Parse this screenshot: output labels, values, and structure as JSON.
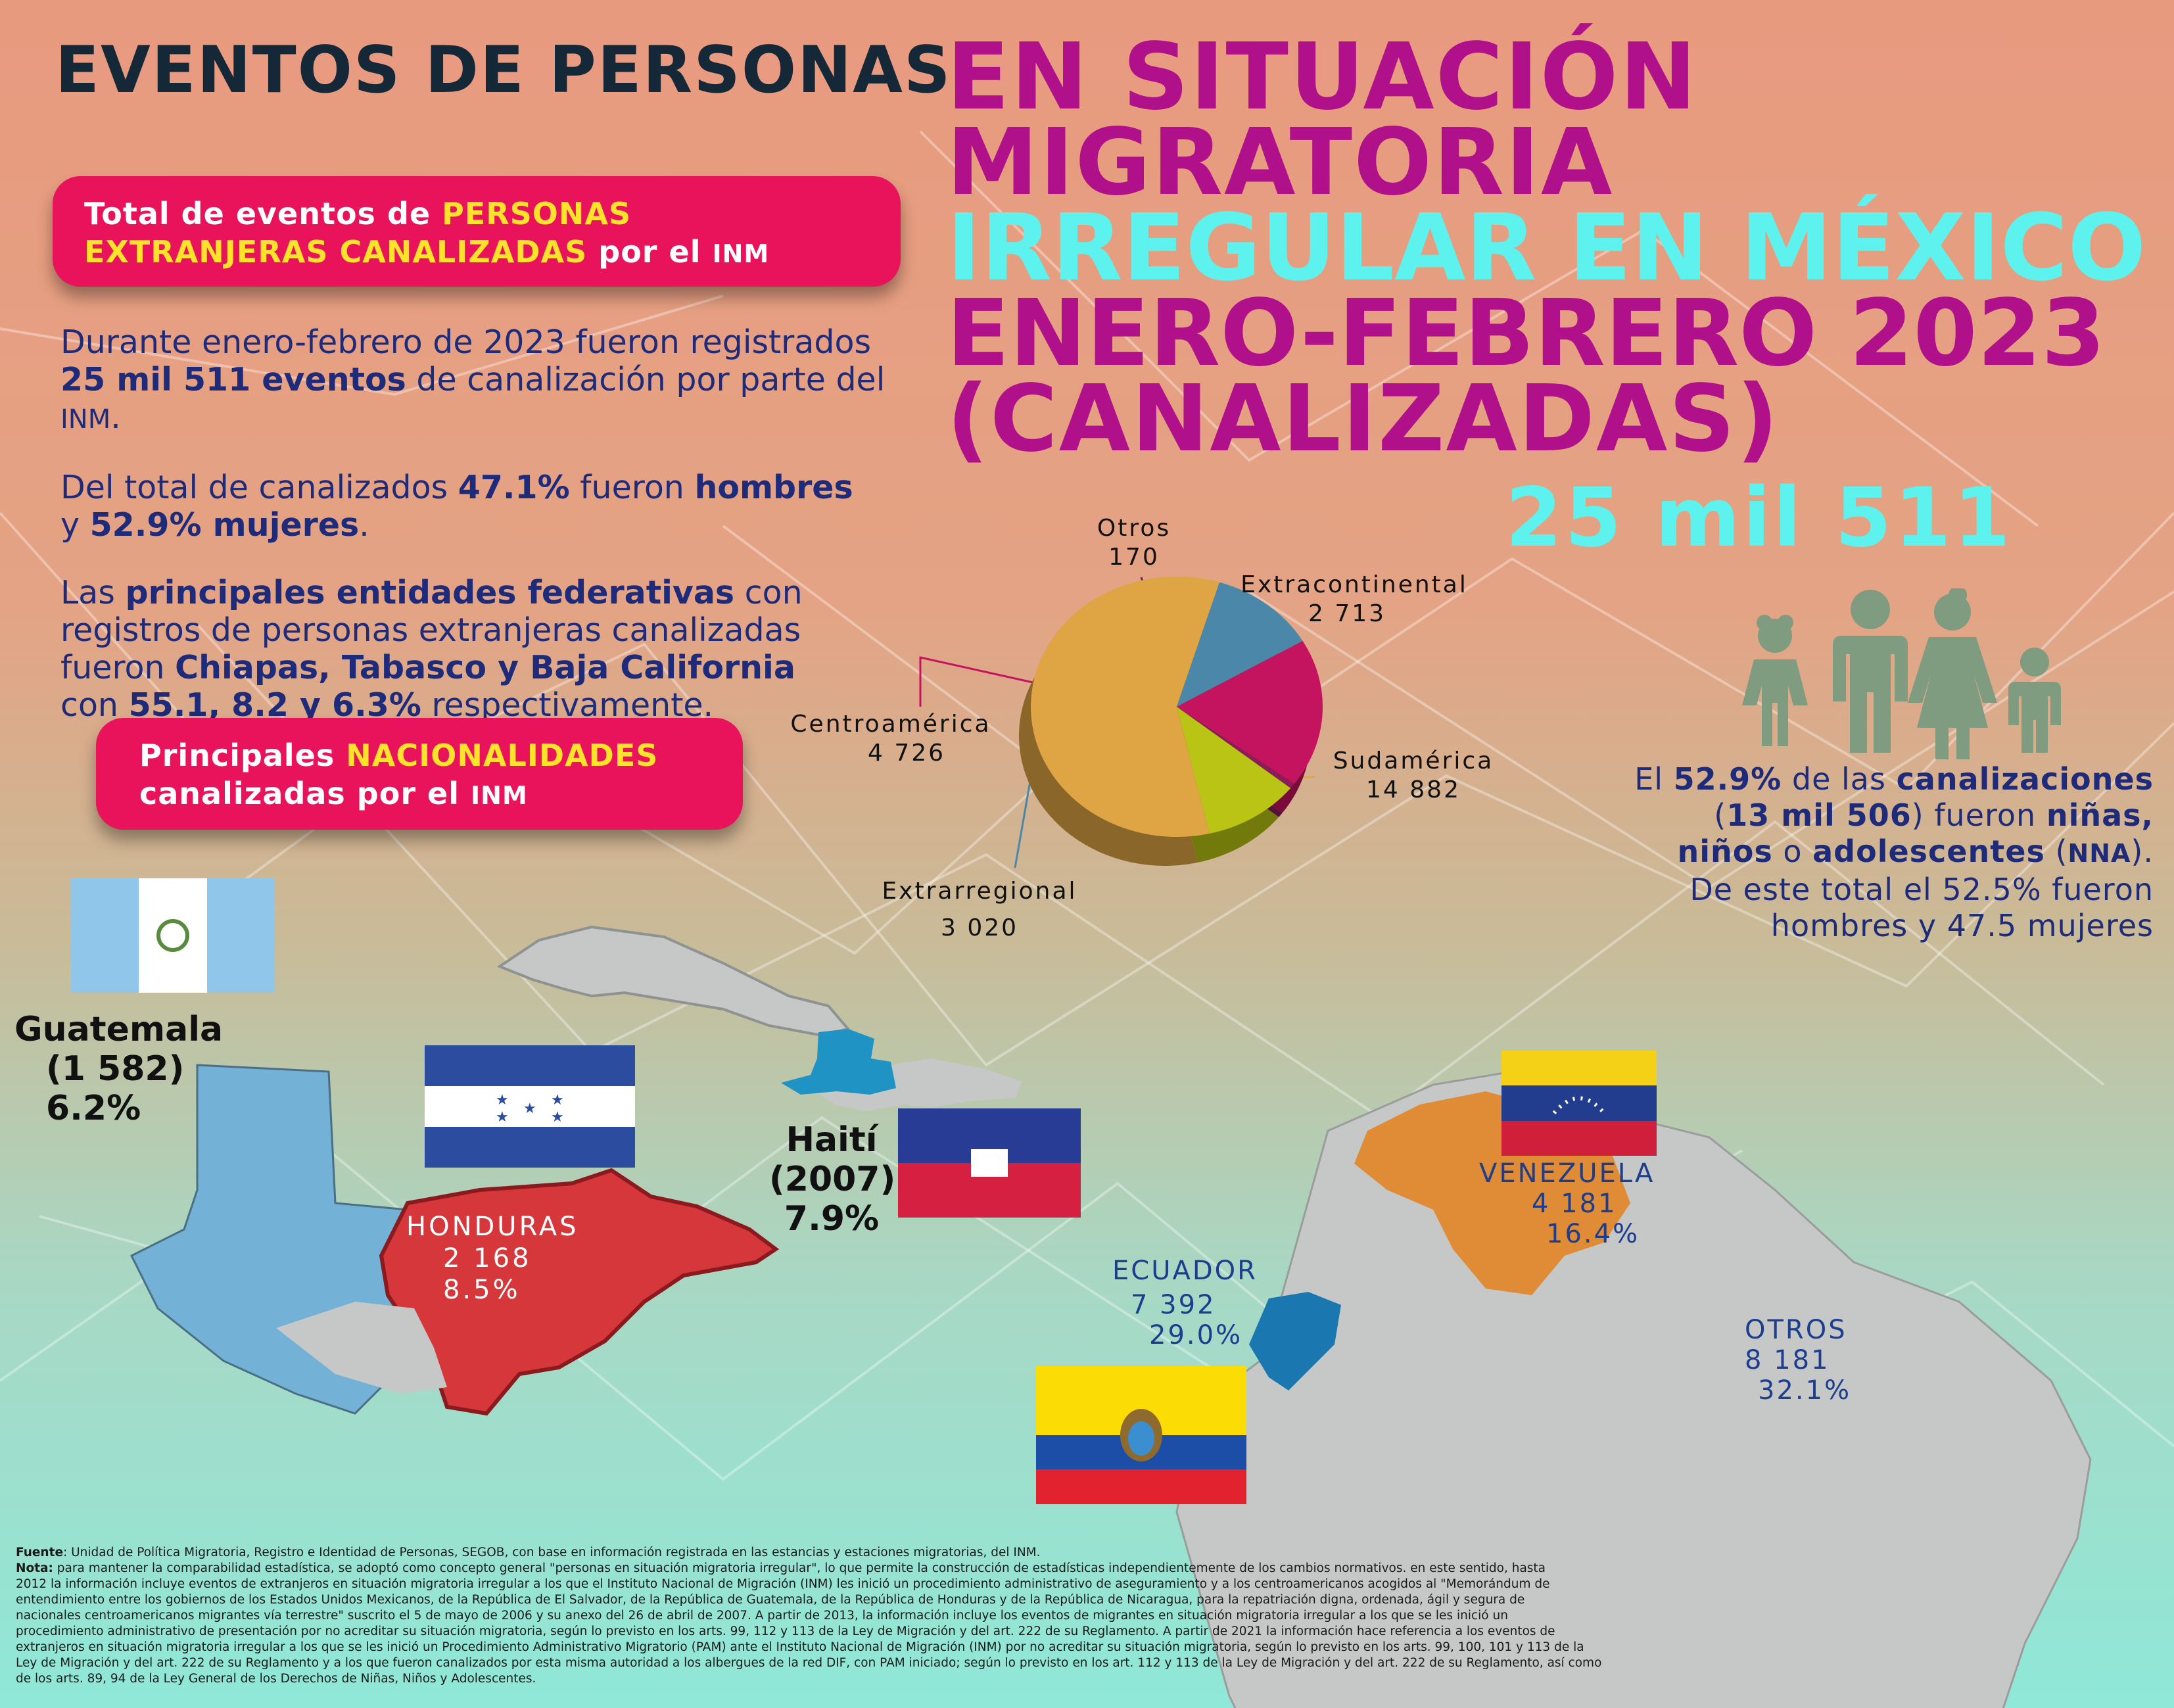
{
  "header": {
    "title_part1": "EVENTOS DE PERSONAS",
    "title_part2": "EN SITUACIÓN",
    "title_part3": "MIGRATORIA",
    "title_part4": "IRREGULAR EN MÉXICO",
    "title_part5": "ENERO-FEBRERO 2023",
    "title_part6": "(CANALIZADAS)",
    "total": "25 mil 511"
  },
  "total_box": {
    "line1_a": "Total de eventos de ",
    "line1_b": "PERSONAS",
    "line2_a": "EXTRANJERAS CANALIZADAS",
    "line2_b": " por el ",
    "line2_c": "INM"
  },
  "paragraphs": {
    "p1_a": "Durante enero-febrero de 2023 fueron registrados",
    "p1_b": "25 mil 511 eventos",
    "p1_c": " de canalización por parte del",
    "p1_d": "INM",
    "p1_e": ".",
    "p2_a": "Del total de canalizados ",
    "p2_b": "47.1%",
    "p2_c": " fueron ",
    "p2_d": "hombres",
    "p2_e": "y ",
    "p2_f": "52.9% mujeres",
    "p2_g": ".",
    "p3_a": "Las ",
    "p3_b": "principales entidades federativas",
    "p3_c": " con",
    "p3_d": "registros de personas extranjeras canalizadas",
    "p3_e": "fueron ",
    "p3_f": "Chiapas, Tabasco y Baja California",
    "p3_g": "con ",
    "p3_h": "55.1, 8.2 y 6.3%",
    "p3_i": " respectivamente."
  },
  "nat_box": {
    "line1_a": "Principales ",
    "line1_b": "NACIONALIDADES",
    "line2_a": "canalizadas por el ",
    "line2_b": "INM"
  },
  "pie": {
    "otros_label": "Otros",
    "otros_value": "170",
    "extracont_label": "Extracontinental",
    "extracont_value": "2 713",
    "centro_label": "Centroamérica",
    "centro_value": "4 726",
    "sud_label": "Sudamérica",
    "sud_value": "14 882",
    "extrarreg_label": "Extrarregional",
    "extrarreg_value": "3 020"
  },
  "chart_data": {
    "type": "pie",
    "categories": [
      "Sudamérica",
      "Extrarregional",
      "Centroamérica",
      "Otros",
      "Extracontinental"
    ],
    "values": [
      14882,
      3020,
      4726,
      170,
      2713
    ],
    "colors": [
      "#dfa444",
      "#4a87a8",
      "#c4135f",
      "#8a1c58",
      "#b9c414"
    ]
  },
  "nna": {
    "l1_a": "El ",
    "l1_b": "52.9%",
    "l1_c": " de las ",
    "l1_d": "canalizaciones",
    "l2_a": "(",
    "l2_b": "13 mil 506",
    "l2_c": ") fueron ",
    "l2_d": "niñas,",
    "l3_a": "niños",
    "l3_b": " o ",
    "l3_c": "adolescentes",
    "l3_d": " (",
    "l3_e": "NNA",
    "l3_f": ").",
    "l4": "De este total el 52.5% fueron",
    "l5": "hombres y 47.5 mujeres"
  },
  "countries": {
    "guatemala_name": "Guatemala",
    "guatemala_value": "(1 582)",
    "guatemala_pct": "6.2%",
    "honduras_name": "HONDURAS",
    "honduras_value": "2 168",
    "honduras_pct": "8.5%",
    "haiti_name": "Haití",
    "haiti_value": "(2007)",
    "haiti_pct": "7.9%",
    "venezuela_name": "VENEZUELA",
    "venezuela_value": "4 181",
    "venezuela_pct": "16.4%",
    "ecuador_name": "ECUADOR",
    "ecuador_value": "7 392",
    "ecuador_pct": "29.0%",
    "otros_name": "OTROS",
    "otros_value": "8 181",
    "otros_pct": "32.1%"
  },
  "footer": {
    "fuente_label": "Fuente",
    "fuente_text": ": Unidad de Política Migratoria, Registro e Identidad de Personas, SEGOB, con base en información registrada en las estancias y estaciones migratorias, del INM.",
    "nota_label": "Nota:",
    "nota_l1": " para mantener la comparabilidad estadística, se adoptó como concepto general \"personas en situación migratoria irregular\", lo que permite la construcción de estadísticas independientemente de los cambios normativos. en este sentido,  hasta",
    "nota_l2": "2012 la información incluye eventos de extranjeros en situación migratoria irregular a los que el Instituto Nacional de Migración (INM) les inició un procedimiento administrativo de aseguramiento y a los centroamericanos acogidos al \"Memorándum de",
    "nota_l3": "entendimiento entre los gobiernos de los Estados Unidos Mexicanos, de la República de El Salvador, de la República de Guatemala, de la República de Honduras y de la República de Nicaragua, para la repatriación digna, ordenada, ágil y segura de",
    "nota_l4": "nacionales centroamericanos migrantes vía terrestre\" suscrito el 5 de mayo de 2006 y su anexo del 26 de abril de 2007. A partir de 2013, la información incluye los eventos de migrantes en situación migratoria irregular a los que se les inició un",
    "nota_l5": "procedimiento administrativo de presentación por no acreditar su situación migratoria, según lo previsto en los arts. 99, 112 y 113 de la Ley de Migración y del art. 222 de su Reglamento. A partir de 2021 la información hace referencia a los eventos de",
    "nota_l6": "extranjeros en situación migratoria irregular a los que se les inició un Procedimiento Administrativo Migratorio (PAM) ante el Instituto Nacional de Migración (INM) por no acreditar su situación migratoria, según lo previsto en los arts. 99, 100, 101 y 113 de la",
    "nota_l7": "Ley de Migración y del art. 222 de su Reglamento y a los que fueron canalizados por esta misma autoridad a los albergues de la red DIF, con PAM iniciado; según lo previsto en los art. 112 y 113 de la Ley de Migración y del art. 222 de su Reglamento, así como",
    "nota_l8": "de los arts. 89, 94 de la Ley General de los Derechos de Niñas, Niños y Adolescentes."
  }
}
